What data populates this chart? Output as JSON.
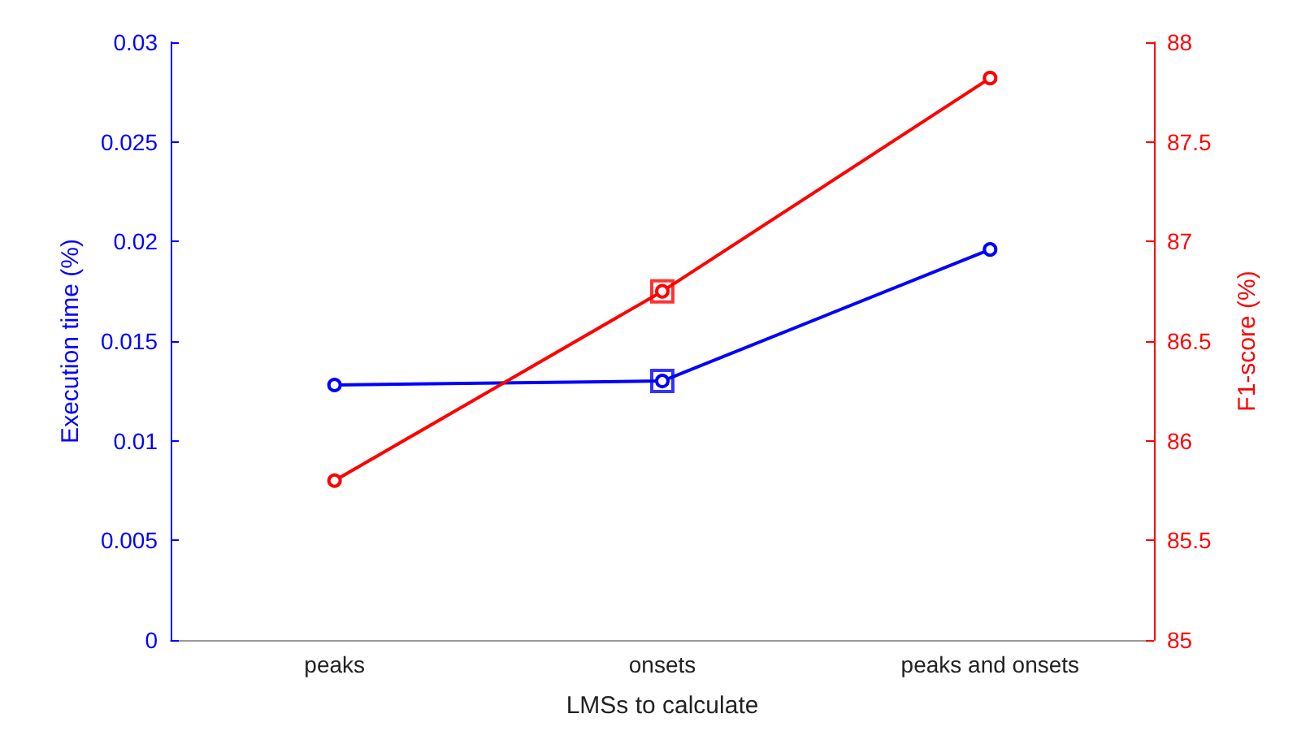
{
  "chart_data": {
    "type": "line",
    "xlabel": "LMSs to calculate",
    "ylabel": "Execution time (%)",
    "y2label": "F1-score (%)",
    "categories": [
      "peaks",
      "onsets",
      "peaks and onsets"
    ],
    "series": [
      {
        "color": "#0000ff",
        "values": [
          0.0128,
          0.013,
          0.0196
        ]
      },
      {
        "color": "#ff0000",
        "axis": "y2",
        "values": [
          85.8,
          86.75,
          87.82
        ]
      },
      {
        "type": "scatter",
        "marker": "square",
        "color": "#0000ff",
        "x": [
          "onsets"
        ],
        "values": [
          0.013
        ]
      },
      {
        "type": "scatter",
        "marker": "square",
        "color": "#ff0000",
        "axis": "y2",
        "x": [
          "onsets"
        ],
        "values": [
          86.75
        ]
      }
    ],
    "ylim": [
      0,
      0.03
    ],
    "yticks": [
      0,
      0.005,
      0.01,
      0.015,
      0.02,
      0.025,
      0.03
    ],
    "y2lim": [
      85,
      88
    ],
    "y2ticks": [
      85,
      85.5,
      86,
      86.5,
      87,
      87.5,
      88
    ],
    "marker": "circle",
    "line_style": "solid",
    "grid": false
  }
}
